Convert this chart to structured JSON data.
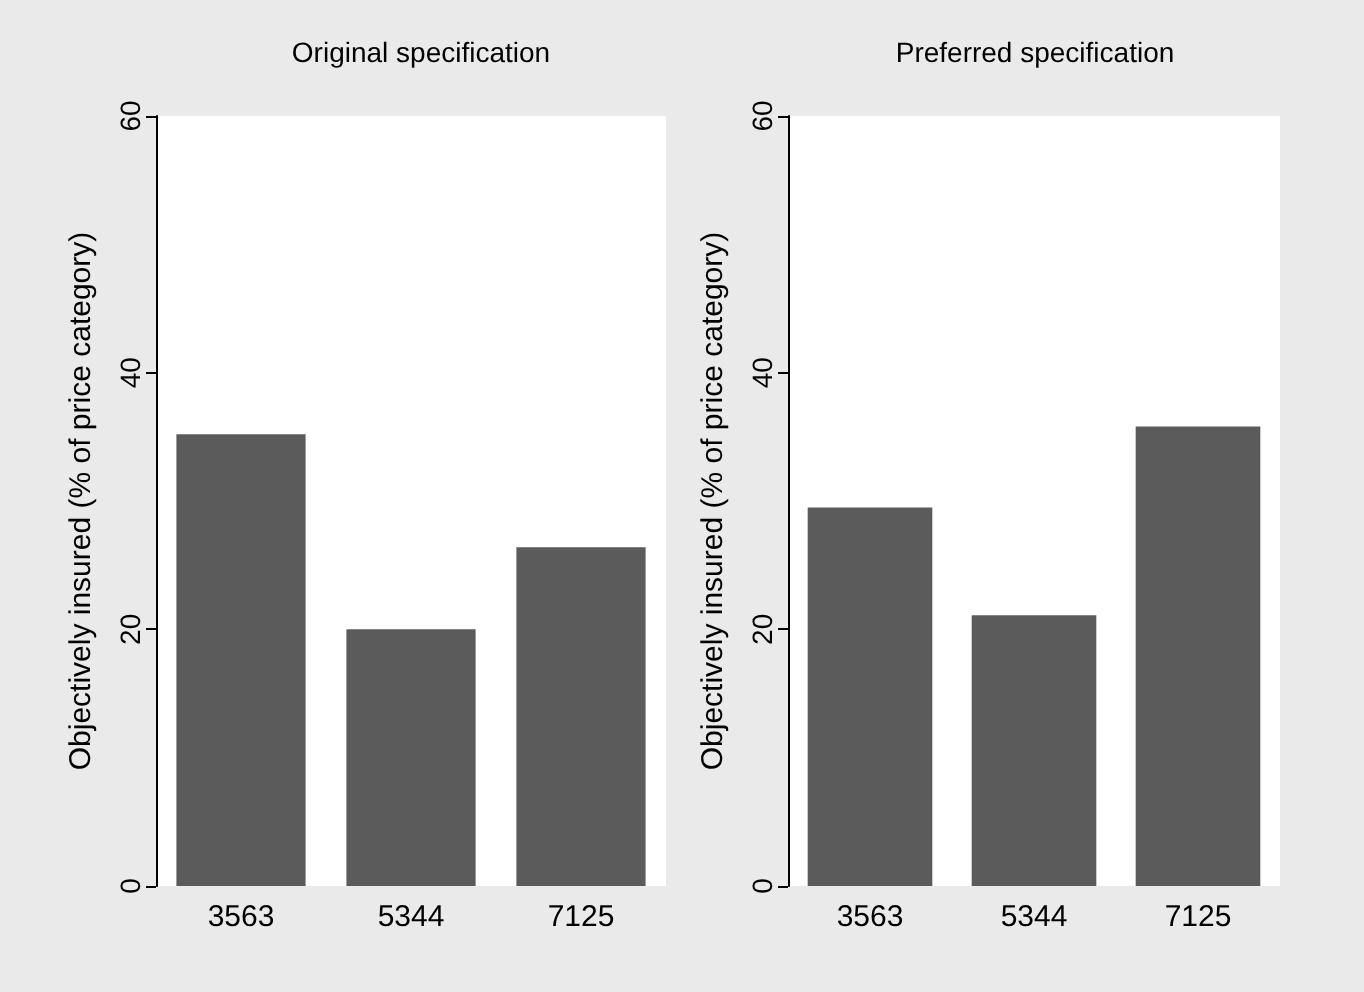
{
  "chart_data": [
    {
      "type": "bar",
      "title": "Original specification",
      "ylabel": "Objectively insured (% of price category)",
      "categories": [
        "3563",
        "5344",
        "7125"
      ],
      "values": [
        35.2,
        20,
        26.4
      ],
      "color": "#5b5b5b",
      "ylim": [
        0,
        60
      ],
      "yticks": [
        0,
        20,
        40,
        60
      ],
      "grid": false
    },
    {
      "type": "bar",
      "title": "Preferred specification",
      "ylabel": "Objectively insured (% of price category)",
      "categories": [
        "3563",
        "5344",
        "7125"
      ],
      "values": [
        29.5,
        21.1,
        35.8
      ],
      "color": "#5b5b5b",
      "ylim": [
        0,
        60
      ],
      "yticks": [
        0,
        20,
        40,
        60
      ],
      "grid": false
    }
  ]
}
